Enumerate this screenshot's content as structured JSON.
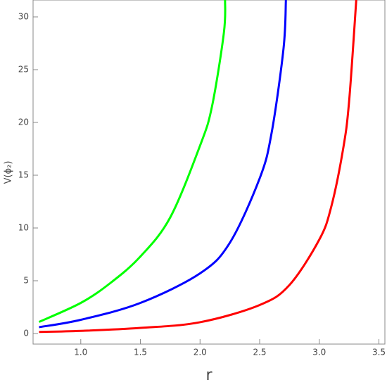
{
  "chart_data": {
    "type": "line",
    "xlabel": "r",
    "ylabel": "V(ϕ₂)",
    "xlim": [
      0.6,
      3.55
    ],
    "ylim": [
      -1,
      31.6
    ],
    "xticks": [
      {
        "value": 1.0,
        "label": "1.0"
      },
      1.5,
      {
        "value": 2.0,
        "label": "2.0"
      },
      2.5,
      {
        "value": 3.0,
        "label": "3.0"
      },
      3.5
    ],
    "yticks": [
      0,
      5,
      10,
      15,
      20,
      25,
      30
    ],
    "series": [
      {
        "color": "#00ff00",
        "x": [
          0.65,
          1.0,
          1.25,
          1.5,
          1.75,
          2.0,
          2.1,
          2.2,
          2.21
        ],
        "values": [
          1.1,
          2.9,
          4.8,
          7.3,
          11,
          17.8,
          21.5,
          28.5,
          31.6
        ]
      },
      {
        "color": "#0000ff",
        "x": [
          0.65,
          1.0,
          1.5,
          2.0,
          2.25,
          2.5,
          2.6,
          2.7,
          2.72
        ],
        "values": [
          0.6,
          1.3,
          2.9,
          5.7,
          8.6,
          14.7,
          19,
          27,
          31.6
        ]
      },
      {
        "color": "#ff0000",
        "x": [
          0.65,
          1.0,
          1.5,
          2.0,
          2.5,
          2.75,
          3.0,
          3.1,
          3.2,
          3.25,
          3.31
        ],
        "values": [
          0.15,
          0.25,
          0.53,
          1.07,
          2.7,
          4.6,
          8.9,
          12,
          17.5,
          22,
          31.6
        ]
      }
    ]
  }
}
